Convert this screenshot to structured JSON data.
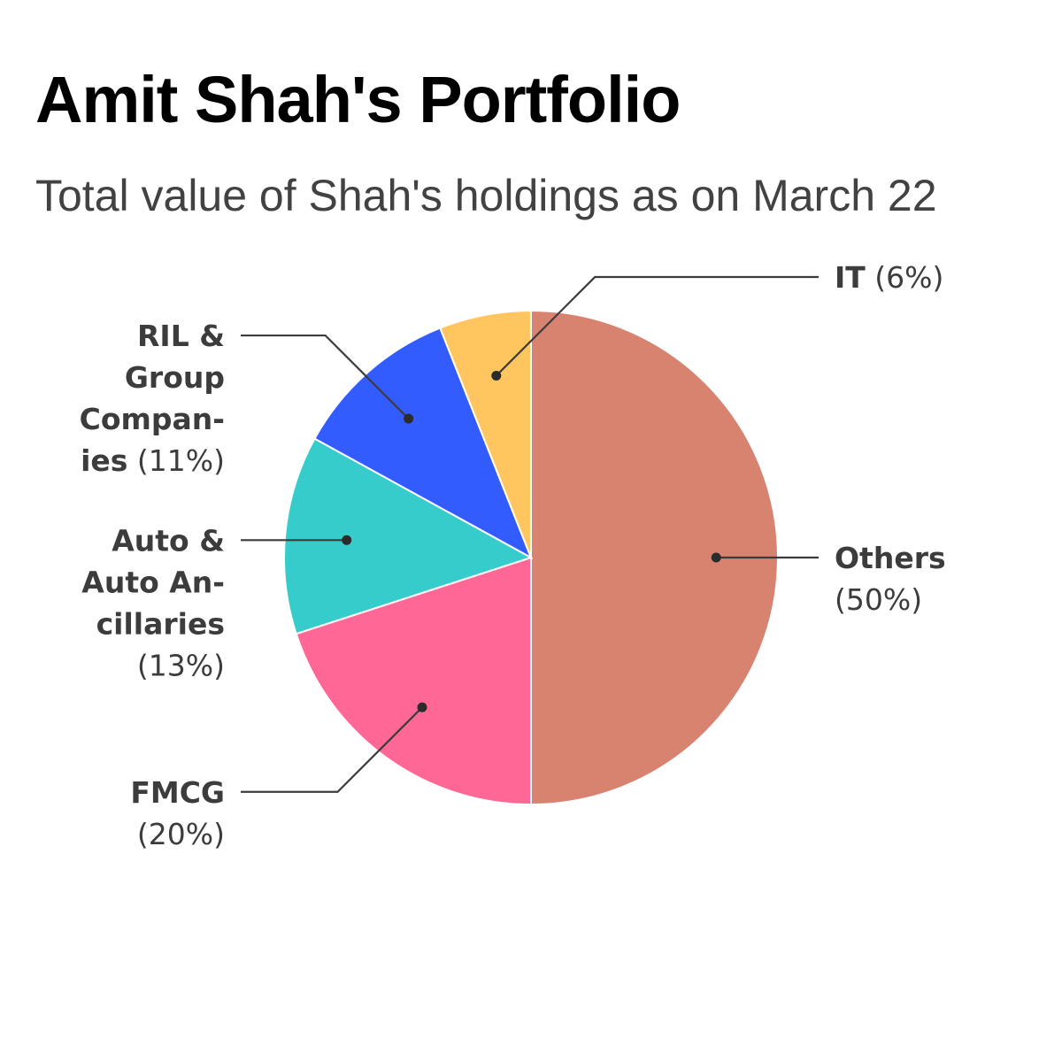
{
  "chart_data": {
    "type": "pie",
    "title": "Amit Shah's Portfolio",
    "subtitle": "Total value of Shah's holdings as on March 22",
    "slices": [
      {
        "label": "Others",
        "label_lines": [
          "Others"
        ],
        "pct_text": "(50%)",
        "pct_on_new_line": true,
        "value": 50,
        "color": "#d88370",
        "side": "right"
      },
      {
        "label": "FMCG",
        "label_lines": [
          "FMCG"
        ],
        "pct_text": "(20%)",
        "pct_on_new_line": true,
        "value": 20,
        "color": "#ff6896",
        "side": "left"
      },
      {
        "label": "Auto & Auto Ancillaries",
        "label_lines": [
          "Auto &",
          "Auto An-",
          "cillaries"
        ],
        "pct_text": "(13%)",
        "pct_on_new_line": true,
        "value": 13,
        "color": "#36cccc",
        "side": "left"
      },
      {
        "label": "RIL & Group Companies",
        "label_lines": [
          "RIL &",
          "Group",
          "Compan-",
          "ies"
        ],
        "pct_text": "(11%)",
        "pct_on_new_line": false,
        "value": 11,
        "color": "#335cff",
        "side": "left"
      },
      {
        "label": "IT",
        "label_lines": [
          "IT"
        ],
        "pct_text": "(6%)",
        "pct_on_new_line": false,
        "value": 6,
        "color": "#ffc660",
        "side": "right"
      }
    ],
    "start_angle_deg": 0,
    "direction": "clockwise",
    "legend": "none"
  }
}
